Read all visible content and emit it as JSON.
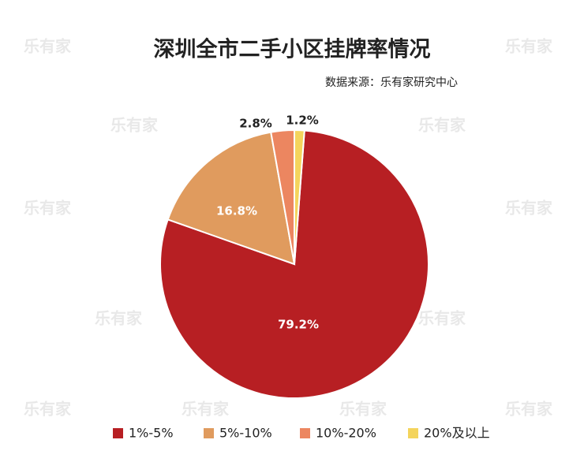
{
  "chart_data": {
    "type": "pie",
    "title": "深圳全市二手小区挂牌率情况",
    "subtitle": "数据来源：乐有家研究中心",
    "watermark": "乐有家",
    "categories": [
      "1%-5%",
      "5%-10%",
      "10%-20%",
      "20%及以上"
    ],
    "values": [
      79.2,
      16.8,
      2.8,
      1.2
    ],
    "value_labels": [
      "79.2%",
      "16.8%",
      "2.8%",
      "1.2%"
    ],
    "colors": [
      "#b71f23",
      "#e09b5e",
      "#ec8660",
      "#f4d45c"
    ],
    "legend": "bottom"
  }
}
